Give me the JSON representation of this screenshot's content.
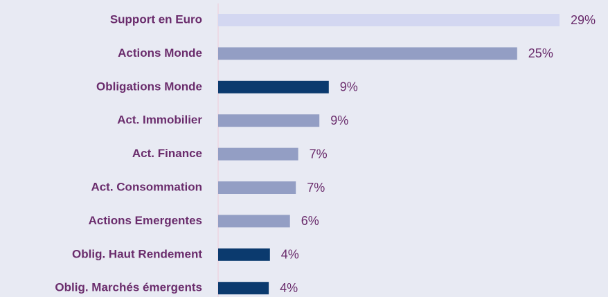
{
  "chart_data": {
    "type": "hbar",
    "categories": [
      "Support en Euro",
      "Actions Monde",
      "Obligations Monde",
      "Act. Immobilier",
      "Act. Finance",
      "Act. Consommation",
      "Actions Emergentes",
      "Oblig. Haut Rendement",
      "Oblig. Marchés émergents"
    ],
    "values": [
      29,
      25.4,
      9.4,
      8.6,
      6.8,
      6.6,
      6.1,
      4.4,
      4.3
    ],
    "value_labels": [
      "29%",
      "25%",
      "9%",
      "9%",
      "7%",
      "7%",
      "6%",
      "4%",
      "4%"
    ],
    "colors": [
      "#d3d7f1",
      "#939ec4",
      "#0b3a6e",
      "#939ec4",
      "#939ec4",
      "#939ec4",
      "#939ec4",
      "#0b3a6e",
      "#0b3a6e"
    ],
    "xlim": [
      0,
      30
    ]
  }
}
